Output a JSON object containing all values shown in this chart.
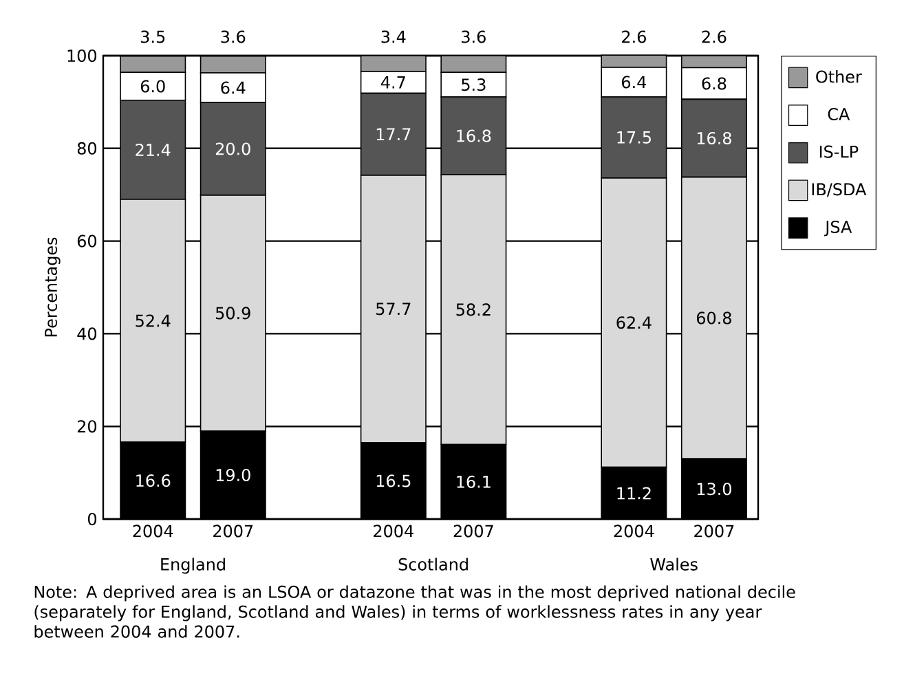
{
  "chart_data": {
    "type": "bar",
    "stacked": true,
    "ylabel": "Percentages",
    "categories": [
      "2004",
      "2007",
      null,
      "2004",
      "2007",
      null,
      "2004",
      "2007"
    ],
    "series": [
      {
        "name": "JSA",
        "color": "#000000",
        "values": [
          16.6,
          19.0,
          null,
          16.5,
          16.1,
          null,
          11.2,
          13.0
        ],
        "value_labels": [
          "16.6",
          "19.0",
          null,
          "16.5",
          "16.1",
          null,
          "11.2",
          "13.0"
        ]
      },
      {
        "name": "IB/SDA",
        "color": "#d9d9d9",
        "values": [
          52.4,
          50.9,
          null,
          57.7,
          58.2,
          null,
          62.4,
          60.8
        ],
        "value_labels": [
          "52.4",
          "50.9",
          null,
          "57.7",
          "58.2",
          null,
          "62.4",
          "60.8"
        ]
      },
      {
        "name": "IS-LP",
        "color": "#555555",
        "values": [
          21.4,
          20.0,
          null,
          17.7,
          16.8,
          null,
          17.5,
          16.8
        ],
        "value_labels": [
          "21.4",
          "20.0",
          null,
          "17.7",
          "16.8",
          null,
          "17.5",
          "16.8"
        ]
      },
      {
        "name": "CA",
        "color": "#ffffff",
        "values": [
          6.0,
          6.4,
          null,
          4.7,
          5.3,
          null,
          6.4,
          6.8
        ],
        "value_labels": [
          "6.0",
          "6.4",
          null,
          "4.7",
          "5.3",
          null,
          "6.4",
          "6.8"
        ]
      },
      {
        "name": "Other",
        "color": "#999999",
        "values": [
          3.5,
          3.6,
          null,
          3.4,
          3.6,
          null,
          2.6,
          2.6
        ],
        "value_labels": [
          "3.5",
          "3.6",
          null,
          "3.4",
          "3.6",
          null,
          "2.6",
          "2.6"
        ]
      }
    ],
    "ylim": [
      0,
      100
    ],
    "yticks": [
      0,
      20,
      40,
      60,
      80,
      100
    ],
    "grid": "y",
    "legend": "right",
    "annotations": [
      "England",
      "Scotland",
      "Wales",
      "Note: A deprived area is an LSOA or datazone that was in the most deprived national decile (separately for England, Scotland and Wales) in terms of worklessness rates in any year between 2004 and 2007."
    ]
  }
}
